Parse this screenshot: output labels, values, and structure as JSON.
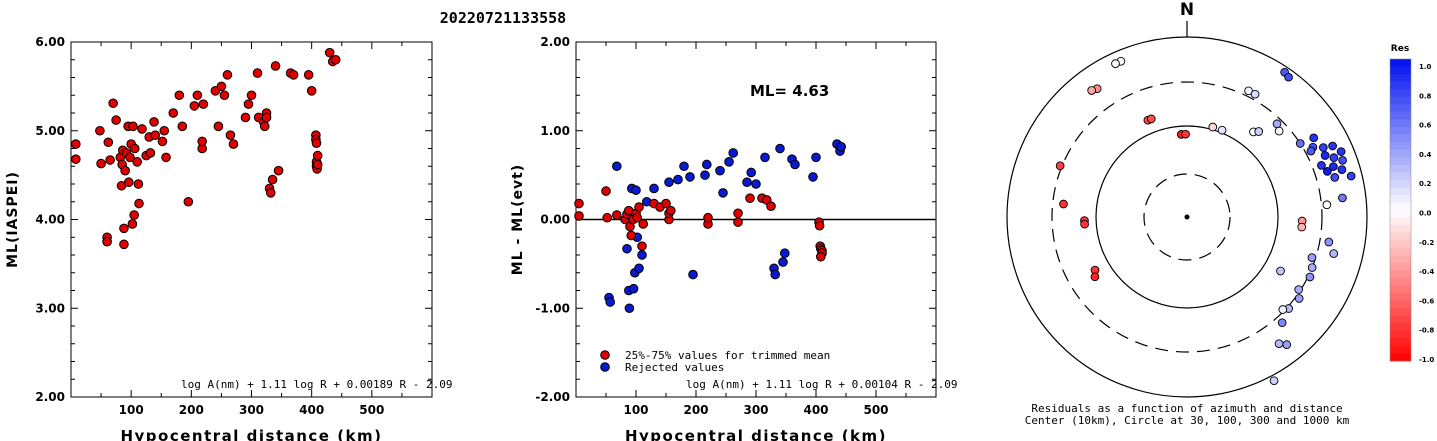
{
  "title": "20220721133558",
  "chart_data": [
    {
      "type": "scatter",
      "ylabel": "ML(IASPEI)",
      "xlabel": "Hypocentral distance (km)",
      "xlim": [
        0,
        600
      ],
      "ylim": [
        2.0,
        6.0
      ],
      "x_ticks": [
        "100",
        "200",
        "300",
        "400",
        "500"
      ],
      "y_ticks": [
        "2.00",
        "3.00",
        "4.00",
        "5.00",
        "6.00"
      ],
      "formula": "log A(nm) + 1.11 log R + 0.00189 R - 2.09",
      "colors": {
        "points": "#e00000"
      },
      "points": [
        [
          8,
          4.85
        ],
        [
          8,
          4.68
        ],
        [
          48,
          5.0
        ],
        [
          50,
          4.63
        ],
        [
          60,
          3.8
        ],
        [
          60,
          3.75
        ],
        [
          62,
          4.87
        ],
        [
          65,
          4.67
        ],
        [
          70,
          5.31
        ],
        [
          75,
          5.12
        ],
        [
          82,
          4.7
        ],
        [
          84,
          4.38
        ],
        [
          85,
          4.62
        ],
        [
          86,
          4.78
        ],
        [
          88,
          3.72
        ],
        [
          88,
          3.9
        ],
        [
          90,
          4.55
        ],
        [
          92,
          4.75
        ],
        [
          95,
          5.05
        ],
        [
          96,
          4.42
        ],
        [
          98,
          4.7
        ],
        [
          100,
          4.85
        ],
        [
          102,
          3.95
        ],
        [
          103,
          5.05
        ],
        [
          105,
          4.05
        ],
        [
          106,
          4.8
        ],
        [
          110,
          4.65
        ],
        [
          112,
          4.4
        ],
        [
          113,
          4.18
        ],
        [
          118,
          5.02
        ],
        [
          125,
          4.72
        ],
        [
          130,
          4.93
        ],
        [
          132,
          4.75
        ],
        [
          138,
          5.1
        ],
        [
          140,
          4.95
        ],
        [
          152,
          4.88
        ],
        [
          155,
          5.0
        ],
        [
          158,
          4.7
        ],
        [
          170,
          5.2
        ],
        [
          180,
          5.4
        ],
        [
          185,
          5.05
        ],
        [
          195,
          4.2
        ],
        [
          205,
          5.28
        ],
        [
          210,
          5.4
        ],
        [
          218,
          4.8
        ],
        [
          218,
          4.88
        ],
        [
          220,
          5.3
        ],
        [
          240,
          5.45
        ],
        [
          245,
          5.05
        ],
        [
          250,
          5.5
        ],
        [
          255,
          5.4
        ],
        [
          260,
          5.63
        ],
        [
          265,
          4.95
        ],
        [
          270,
          4.85
        ],
        [
          290,
          5.15
        ],
        [
          295,
          5.3
        ],
        [
          300,
          5.4
        ],
        [
          310,
          5.65
        ],
        [
          312,
          5.15
        ],
        [
          320,
          5.1
        ],
        [
          322,
          5.05
        ],
        [
          325,
          5.2
        ],
        [
          325,
          5.15
        ],
        [
          330,
          4.35
        ],
        [
          332,
          4.3
        ],
        [
          335,
          4.45
        ],
        [
          340,
          5.73
        ],
        [
          345,
          4.55
        ],
        [
          365,
          5.65
        ],
        [
          370,
          5.63
        ],
        [
          395,
          5.63
        ],
        [
          400,
          5.45
        ],
        [
          407,
          4.95
        ],
        [
          407,
          4.9
        ],
        [
          408,
          4.86
        ],
        [
          408,
          4.65
        ],
        [
          408,
          4.6
        ],
        [
          409,
          4.57
        ],
        [
          410,
          4.72
        ],
        [
          410,
          4.62
        ],
        [
          430,
          5.88
        ],
        [
          435,
          5.78
        ],
        [
          440,
          5.8
        ]
      ]
    },
    {
      "type": "scatter",
      "ylabel": "ML - ML(evt)",
      "xlabel": "Hypocentral distance (km)",
      "xlim": [
        0,
        600
      ],
      "ylim": [
        -2.0,
        2.0
      ],
      "x_ticks": [
        "100",
        "200",
        "300",
        "400",
        "500"
      ],
      "y_ticks": [
        "-2.00",
        "-1.00",
        "0.00",
        "1.00",
        "2.00"
      ],
      "ml_label": "ML=  4.63",
      "formula": "log A(nm) + 1.11 log R + 0.00104 R - 2.09",
      "legend": [
        "25%-75% values for trimmed mean",
        "Rejected values"
      ],
      "colors": {
        "used": "#e00000",
        "rejected": "#0a1ad0"
      },
      "used_points": [
        [
          5,
          0.18
        ],
        [
          5,
          0.04
        ],
        [
          50,
          0.32
        ],
        [
          52,
          0.02
        ],
        [
          68,
          0.05
        ],
        [
          82,
          0.0
        ],
        [
          85,
          0.06
        ],
        [
          88,
          0.1
        ],
        [
          90,
          -0.08
        ],
        [
          92,
          -0.18
        ],
        [
          95,
          0.0
        ],
        [
          100,
          0.07
        ],
        [
          102,
          0.02
        ],
        [
          105,
          0.14
        ],
        [
          110,
          -0.3
        ],
        [
          112,
          -0.05
        ],
        [
          130,
          0.18
        ],
        [
          140,
          0.14
        ],
        [
          150,
          0.18
        ],
        [
          155,
          0.0
        ],
        [
          155,
          0.07
        ],
        [
          158,
          0.1
        ],
        [
          220,
          -0.05
        ],
        [
          220,
          0.02
        ],
        [
          270,
          -0.03
        ],
        [
          270,
          0.07
        ],
        [
          290,
          0.24
        ],
        [
          310,
          0.24
        ],
        [
          318,
          0.22
        ],
        [
          325,
          0.15
        ],
        [
          405,
          -0.03
        ],
        [
          406,
          -0.07
        ],
        [
          407,
          -0.3
        ],
        [
          408,
          -0.33
        ],
        [
          410,
          -0.35
        ],
        [
          410,
          -0.38
        ],
        [
          408,
          -0.42
        ]
      ],
      "rejected_points": [
        [
          55,
          -0.88
        ],
        [
          57,
          -0.93
        ],
        [
          68,
          0.6
        ],
        [
          85,
          -0.33
        ],
        [
          88,
          -0.8
        ],
        [
          89,
          -1.0
        ],
        [
          93,
          0.35
        ],
        [
          96,
          -0.78
        ],
        [
          98,
          -0.6
        ],
        [
          100,
          0.33
        ],
        [
          102,
          -0.2
        ],
        [
          105,
          -0.55
        ],
        [
          110,
          -0.4
        ],
        [
          118,
          0.2
        ],
        [
          130,
          0.35
        ],
        [
          155,
          0.42
        ],
        [
          170,
          0.45
        ],
        [
          180,
          0.6
        ],
        [
          190,
          0.48
        ],
        [
          195,
          -0.62
        ],
        [
          215,
          0.5
        ],
        [
          218,
          0.62
        ],
        [
          240,
          0.55
        ],
        [
          245,
          0.3
        ],
        [
          255,
          0.65
        ],
        [
          262,
          0.75
        ],
        [
          285,
          0.42
        ],
        [
          292,
          0.53
        ],
        [
          300,
          0.4
        ],
        [
          315,
          0.7
        ],
        [
          330,
          -0.55
        ],
        [
          332,
          -0.62
        ],
        [
          340,
          0.8
        ],
        [
          345,
          -0.48
        ],
        [
          348,
          -0.38
        ],
        [
          360,
          0.68
        ],
        [
          365,
          0.62
        ],
        [
          395,
          0.48
        ],
        [
          400,
          0.7
        ],
        [
          435,
          0.85
        ],
        [
          440,
          0.77
        ],
        [
          442,
          0.82
        ]
      ]
    },
    {
      "type": "polar-scatter",
      "north_label": "N",
      "caption_line1": "Residuals as a function of azimuth and distance",
      "caption_line2": "Center (10km), Circle at 30, 100, 300 and 1000 km",
      "colorbar": {
        "title": "Res",
        "ticks": [
          "1.0",
          "0.8",
          "0.6",
          "0.4",
          "0.2",
          "0.0",
          "-0.2",
          "-0.4",
          "-0.6",
          "-0.8",
          "-1.0"
        ],
        "max_color": "#0010f0",
        "zero_color": "#ffffff",
        "min_color": "#ff0000"
      },
      "stations": [
        {
          "az": -23,
          "r": 0.94,
          "res": 0.03
        },
        {
          "az": -25,
          "r": 0.94,
          "res": 0.02
        },
        {
          "az": -35,
          "r": 0.87,
          "res": -0.45
        },
        {
          "az": -37,
          "r": 0.88,
          "res": -0.35
        },
        {
          "az": -22,
          "r": 0.58,
          "res": -0.7
        },
        {
          "az": -20,
          "r": 0.58,
          "res": -0.7
        },
        {
          "az": -4,
          "r": 0.46,
          "res": -0.9
        },
        {
          "az": -1,
          "r": 0.46,
          "res": -0.8
        },
        {
          "az": -68,
          "r": 0.76,
          "res": -0.75
        },
        {
          "az": -84,
          "r": 0.69,
          "res": -0.8
        },
        {
          "az": -92,
          "r": 0.57,
          "res": -0.8
        },
        {
          "az": -94,
          "r": 0.57,
          "res": -0.8
        },
        {
          "az": -120,
          "r": 0.59,
          "res": -0.8
        },
        {
          "az": -123,
          "r": 0.61,
          "res": -0.85
        },
        {
          "az": 26,
          "r": 0.78,
          "res": 0.05
        },
        {
          "az": 29,
          "r": 0.78,
          "res": 0.15
        },
        {
          "az": 34,
          "r": 0.97,
          "res": 0.7
        },
        {
          "az": 36,
          "r": 0.96,
          "res": 0.75
        },
        {
          "az": 16,
          "r": 0.52,
          "res": -0.15
        },
        {
          "az": 22,
          "r": 0.52,
          "res": 0.1
        },
        {
          "az": 38,
          "r": 0.6,
          "res": 0.0
        },
        {
          "az": 40,
          "r": 0.62,
          "res": 0.2
        },
        {
          "az": 44,
          "r": 0.72,
          "res": 0.35
        },
        {
          "az": 47,
          "r": 0.7,
          "res": 0.0
        },
        {
          "az": 57,
          "r": 0.75,
          "res": 0.6
        },
        {
          "az": 58,
          "r": 0.83,
          "res": 0.85
        },
        {
          "az": 61,
          "r": 0.8,
          "res": 0.75
        },
        {
          "az": 63,
          "r": 0.85,
          "res": 0.8
        },
        {
          "az": 64,
          "r": 0.9,
          "res": 0.85
        },
        {
          "az": 66,
          "r": 0.84,
          "res": 0.9
        },
        {
          "az": 67,
          "r": 0.93,
          "res": 0.85
        },
        {
          "az": 68,
          "r": 0.88,
          "res": 0.8
        },
        {
          "az": 70,
          "r": 0.92,
          "res": 0.75
        },
        {
          "az": 71,
          "r": 0.86,
          "res": 0.9
        },
        {
          "az": 73,
          "r": 0.9,
          "res": 0.85
        },
        {
          "az": 75,
          "r": 0.85,
          "res": 0.75
        },
        {
          "az": 76,
          "r": 0.94,
          "res": 0.8
        },
        {
          "az": 69,
          "r": 0.8,
          "res": 0.85
        },
        {
          "az": 72,
          "r": 0.82,
          "res": 0.95
        },
        {
          "az": 62,
          "r": 0.78,
          "res": 0.7
        },
        {
          "az": 83,
          "r": 0.87,
          "res": 0.55
        },
        {
          "az": 85,
          "r": 0.78,
          "res": 0.0
        },
        {
          "az": 92,
          "r": 0.64,
          "res": -0.4
        },
        {
          "az": 95,
          "r": 0.64,
          "res": -0.3
        },
        {
          "az": 108,
          "r": 0.73,
          "res": 0.4
        },
        {
          "az": 112,
          "r": 0.75,
          "res": 0.35
        },
        {
          "az": 116,
          "r": 0.76,
          "res": 0.45
        },
        {
          "az": 120,
          "r": 0.6,
          "res": 0.25
        },
        {
          "az": 123,
          "r": 0.74,
          "res": 0.35
        },
        {
          "az": 126,
          "r": 0.77,
          "res": 0.4
        },
        {
          "az": 132,
          "r": 0.76,
          "res": 0.3
        },
        {
          "az": 134,
          "r": 0.74,
          "res": 0.05
        },
        {
          "az": 138,
          "r": 0.79,
          "res": 0.5
        },
        {
          "az": 142,
          "r": 0.9,
          "res": 0.4
        },
        {
          "az": 144,
          "r": 0.87,
          "res": 0.3
        },
        {
          "az": 152,
          "r": 1.03,
          "res": 0.2
        },
        {
          "az": 100,
          "r": 0.8,
          "res": 0.45
        },
        {
          "az": 104,
          "r": 0.84,
          "res": 0.3
        }
      ]
    }
  ]
}
